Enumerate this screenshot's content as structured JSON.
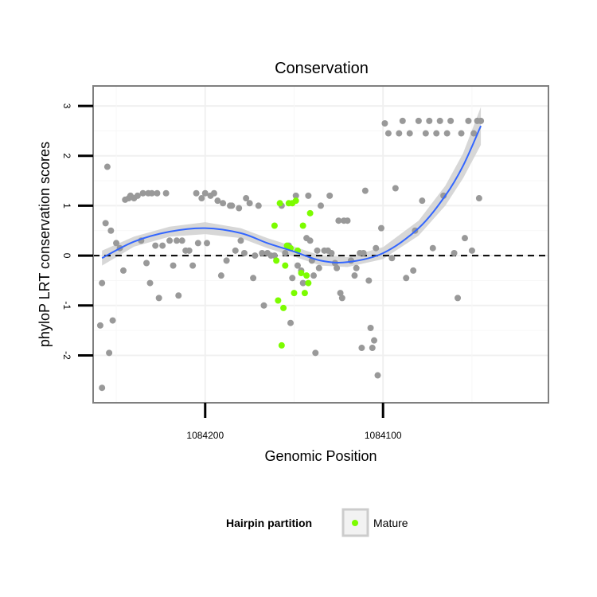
{
  "chart_data": {
    "type": "scatter",
    "title": "Conservation",
    "xlabel": "Genomic Position",
    "ylabel": "phyloP LRT conservation scores",
    "x_reversed": true,
    "xlim": [
      1084263,
      1084007
    ],
    "ylim": [
      -2.95,
      3.4
    ],
    "x_ticks": [
      {
        "value": 1084200,
        "label": "1084200"
      },
      {
        "value": 1084100,
        "label": "1084100"
      }
    ],
    "y_ticks": [
      {
        "value": 3,
        "label": "3"
      },
      {
        "value": 2,
        "label": "2"
      },
      {
        "value": 1,
        "label": "1"
      },
      {
        "value": 0,
        "label": "0"
      },
      {
        "value": -1,
        "label": "-1"
      },
      {
        "value": -2,
        "label": "-2"
      }
    ],
    "reference_line": {
      "y": 0,
      "style": "dashed"
    },
    "grid": true,
    "colors": {
      "gray_points": "#999999",
      "mature": "#7cfc00",
      "smooth_line": "#3366ff",
      "ribbon": "#d3d3d3"
    },
    "series": [
      {
        "name": "",
        "color": "#999999",
        "points": [
          [
            1084258,
            -2.65
          ],
          [
            1084259,
            -1.4
          ],
          [
            1084258,
            -0.55
          ],
          [
            1084256,
            0.65
          ],
          [
            1084255,
            1.78
          ],
          [
            1084254,
            -1.95
          ],
          [
            1084253,
            0.5
          ],
          [
            1084252,
            -1.3
          ],
          [
            1084250,
            0.25
          ],
          [
            1084248,
            0.15
          ],
          [
            1084246,
            -0.3
          ],
          [
            1084245,
            1.12
          ],
          [
            1084243,
            1.15
          ],
          [
            1084242,
            1.2
          ],
          [
            1084240,
            1.15
          ],
          [
            1084238,
            1.2
          ],
          [
            1084236,
            0.3
          ],
          [
            1084235,
            1.25
          ],
          [
            1084233,
            -0.15
          ],
          [
            1084232,
            1.25
          ],
          [
            1084231,
            -0.55
          ],
          [
            1084230,
            1.25
          ],
          [
            1084228,
            0.2
          ],
          [
            1084227,
            1.25
          ],
          [
            1084226,
            -0.85
          ],
          [
            1084224,
            0.2
          ],
          [
            1084222,
            1.25
          ],
          [
            1084220,
            0.3
          ],
          [
            1084218,
            -0.2
          ],
          [
            1084216,
            0.3
          ],
          [
            1084215,
            -0.8
          ],
          [
            1084213,
            0.3
          ],
          [
            1084211,
            0.1
          ],
          [
            1084209,
            0.1
          ],
          [
            1084207,
            -0.2
          ],
          [
            1084205,
            1.25
          ],
          [
            1084204,
            0.25
          ],
          [
            1084202,
            1.15
          ],
          [
            1084200,
            1.25
          ],
          [
            1084199,
            0.25
          ],
          [
            1084197,
            1.2
          ],
          [
            1084195,
            1.25
          ],
          [
            1084193,
            1.1
          ],
          [
            1084191,
            -0.4
          ],
          [
            1084190,
            1.05
          ],
          [
            1084188,
            -0.1
          ],
          [
            1084186,
            1.0
          ],
          [
            1084185,
            1.0
          ],
          [
            1084183,
            0.1
          ],
          [
            1084181,
            0.95
          ],
          [
            1084180,
            0.3
          ],
          [
            1084178,
            0.05
          ],
          [
            1084177,
            1.15
          ],
          [
            1084175,
            1.05
          ],
          [
            1084173,
            -0.45
          ],
          [
            1084172,
            0.0
          ],
          [
            1084170,
            1.0
          ],
          [
            1084168,
            0.05
          ],
          [
            1084167,
            -1.0
          ],
          [
            1084165,
            0.05
          ],
          [
            1084163,
            0.0
          ],
          [
            1084161,
            0.0
          ],
          [
            1084157,
            1.0
          ],
          [
            1084155,
            0.05
          ],
          [
            1084153,
            0.2
          ],
          [
            1084152,
            -1.35
          ],
          [
            1084151,
            -0.45
          ],
          [
            1084149,
            1.2
          ],
          [
            1084148,
            -0.2
          ],
          [
            1084146,
            -0.3
          ],
          [
            1084145,
            -0.55
          ],
          [
            1084143,
            0.35
          ],
          [
            1084142,
            1.2
          ],
          [
            1084141,
            0.3
          ],
          [
            1084140,
            -0.1
          ],
          [
            1084139,
            -0.4
          ],
          [
            1084138,
            -1.95
          ],
          [
            1084137,
            0.1
          ],
          [
            1084136,
            -0.25
          ],
          [
            1084135,
            1.0
          ],
          [
            1084133,
            0.1
          ],
          [
            1084131,
            0.1
          ],
          [
            1084130,
            1.2
          ],
          [
            1084129,
            0.05
          ],
          [
            1084127,
            -0.15
          ],
          [
            1084126,
            -0.25
          ],
          [
            1084125,
            0.7
          ],
          [
            1084124,
            -0.75
          ],
          [
            1084123,
            -0.85
          ],
          [
            1084122,
            0.7
          ],
          [
            1084120,
            0.7
          ],
          [
            1084118,
            -0.1
          ],
          [
            1084116,
            -0.4
          ],
          [
            1084115,
            -0.25
          ],
          [
            1084113,
            0.05
          ],
          [
            1084112,
            -1.85
          ],
          [
            1084111,
            0.05
          ],
          [
            1084110,
            1.3
          ],
          [
            1084108,
            -0.5
          ],
          [
            1084107,
            -1.45
          ],
          [
            1084106,
            -1.85
          ],
          [
            1084105,
            -1.7
          ],
          [
            1084104,
            0.15
          ],
          [
            1084103,
            -2.4
          ],
          [
            1084101,
            0.55
          ],
          [
            1084099,
            2.65
          ],
          [
            1084097,
            2.45
          ],
          [
            1084095,
            -0.05
          ],
          [
            1084093,
            1.35
          ],
          [
            1084091,
            2.45
          ],
          [
            1084089,
            2.7
          ],
          [
            1084087,
            -0.45
          ],
          [
            1084085,
            2.45
          ],
          [
            1084083,
            -0.3
          ],
          [
            1084082,
            0.5
          ],
          [
            1084080,
            2.7
          ],
          [
            1084078,
            1.1
          ],
          [
            1084076,
            2.45
          ],
          [
            1084074,
            2.7
          ],
          [
            1084072,
            0.15
          ],
          [
            1084070,
            2.45
          ],
          [
            1084068,
            2.7
          ],
          [
            1084066,
            1.2
          ],
          [
            1084064,
            2.45
          ],
          [
            1084062,
            2.7
          ],
          [
            1084060,
            0.05
          ],
          [
            1084058,
            -0.85
          ],
          [
            1084056,
            2.45
          ],
          [
            1084054,
            0.35
          ],
          [
            1084052,
            2.7
          ],
          [
            1084050,
            0.1
          ],
          [
            1084049,
            2.45
          ],
          [
            1084047,
            2.7
          ],
          [
            1084046,
            1.15
          ],
          [
            1084045,
            2.7
          ]
        ]
      },
      {
        "name": "Mature",
        "color": "#7cfc00",
        "points": [
          [
            1084161,
            0.6
          ],
          [
            1084160,
            -0.1
          ],
          [
            1084159,
            -0.9
          ],
          [
            1084158,
            1.05
          ],
          [
            1084157,
            -1.8
          ],
          [
            1084156,
            -1.05
          ],
          [
            1084155,
            -0.2
          ],
          [
            1084154,
            0.2
          ],
          [
            1084153,
            1.05
          ],
          [
            1084152,
            0.15
          ],
          [
            1084151,
            1.05
          ],
          [
            1084150,
            -0.75
          ],
          [
            1084149,
            1.1
          ],
          [
            1084148,
            0.1
          ],
          [
            1084146,
            -0.35
          ],
          [
            1084145,
            0.6
          ],
          [
            1084144,
            -0.75
          ],
          [
            1084143,
            -0.4
          ],
          [
            1084142,
            -0.55
          ],
          [
            1084141,
            0.85
          ]
        ]
      }
    ],
    "smooth": {
      "color": "#3366ff",
      "points": [
        [
          1084258,
          -0.05
        ],
        [
          1084240,
          0.28
        ],
        [
          1084220,
          0.48
        ],
        [
          1084200,
          0.55
        ],
        [
          1084180,
          0.45
        ],
        [
          1084165,
          0.25
        ],
        [
          1084150,
          0.08
        ],
        [
          1084135,
          -0.1
        ],
        [
          1084120,
          -0.13
        ],
        [
          1084100,
          0.05
        ],
        [
          1084080,
          0.55
        ],
        [
          1084065,
          1.2
        ],
        [
          1084055,
          1.8
        ],
        [
          1084045,
          2.6
        ]
      ],
      "se": [
        0.15,
        0.1,
        0.1,
        0.12,
        0.1,
        0.1,
        0.1,
        0.1,
        0.1,
        0.12,
        0.15,
        0.2,
        0.25,
        0.38
      ]
    }
  },
  "legend": {
    "title": "Hairpin partition",
    "items": [
      {
        "label": "Mature",
        "color": "#7cfc00"
      }
    ]
  }
}
